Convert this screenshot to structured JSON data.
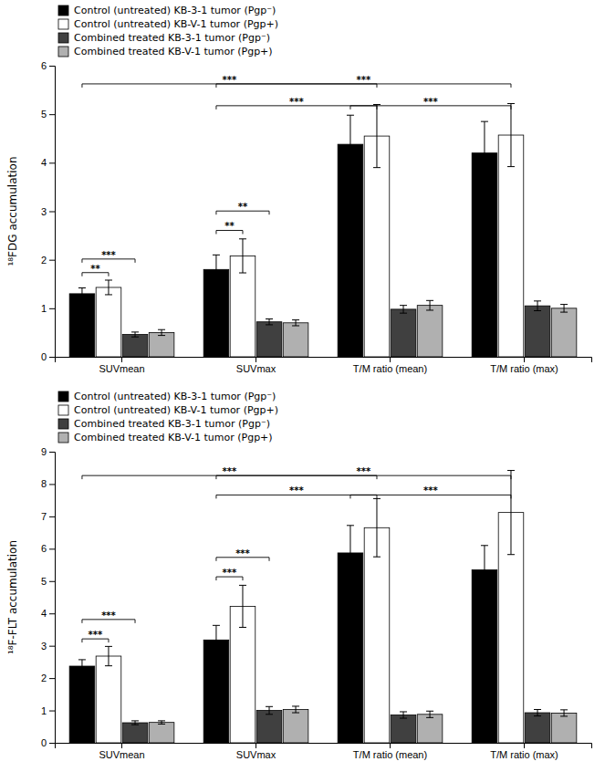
{
  "chart_data": [
    {
      "type": "bar",
      "ylabel": "¹⁸FDG accumulation",
      "categories": [
        "SUVmean",
        "SUVmax",
        "T/M ratio (mean)",
        "T/M ratio (max)"
      ],
      "series": [
        {
          "name": "Control (untreated) KB-3-1 tumor (Pgp⁻)",
          "color": "#000000",
          "values": [
            1.3,
            1.8,
            4.38,
            4.2
          ],
          "errors": [
            0.12,
            0.3,
            0.6,
            0.65
          ]
        },
        {
          "name": "Control (untreated) KB-V-1 tumor (Pgp+)",
          "color": "#ffffff",
          "values": [
            1.43,
            2.08,
            4.55,
            4.57
          ],
          "errors": [
            0.15,
            0.35,
            0.65,
            0.65
          ]
        },
        {
          "name": "Combined treated KB-3-1 tumor (Pgp⁻)",
          "color": "#404040",
          "values": [
            0.46,
            0.72,
            0.98,
            1.05
          ],
          "errors": [
            0.05,
            0.06,
            0.08,
            0.1
          ]
        },
        {
          "name": "Combined treated KB-V-1 tumor (Pgp+)",
          "color": "#b0b0b0",
          "values": [
            0.5,
            0.7,
            1.06,
            1.0
          ],
          "errors": [
            0.06,
            0.06,
            0.1,
            0.08
          ]
        }
      ],
      "ylim": [
        0,
        6
      ],
      "yticks": [
        0,
        1,
        2,
        3,
        4,
        5,
        6
      ],
      "grid": false,
      "legend": "upper left",
      "annotations": [
        {
          "text": "**",
          "y": 1.66,
          "start": [
            0,
            0
          ],
          "end": [
            0,
            1
          ]
        },
        {
          "text": "***",
          "y": 1.94,
          "start": [
            0,
            0
          ],
          "end": [
            0,
            2
          ]
        },
        {
          "text": "**",
          "y": 2.53,
          "start": [
            1,
            0
          ],
          "end": [
            1,
            1
          ]
        },
        {
          "text": "**",
          "y": 2.93,
          "start": [
            1,
            0
          ],
          "end": [
            1,
            2
          ]
        },
        {
          "text": "***",
          "y": 5.1,
          "start": [
            1,
            0
          ],
          "end": [
            2,
            1
          ]
        },
        {
          "text": "***",
          "y": 5.55,
          "start": [
            0,
            0
          ],
          "end": [
            2,
            1
          ]
        },
        {
          "text": "***",
          "y": 5.1,
          "start": [
            2,
            0
          ],
          "end": [
            3,
            1
          ]
        },
        {
          "text": "***",
          "y": 5.55,
          "start": [
            1,
            0
          ],
          "end": [
            3,
            1
          ]
        }
      ]
    },
    {
      "type": "bar",
      "ylabel": "¹⁸F-FLT accumulation",
      "categories": [
        "SUVmean",
        "SUVmax",
        "T/M ratio (mean)",
        "T/M ratio (max)"
      ],
      "series": [
        {
          "name": "Control (untreated) KB-3-1 tumor (Pgp⁻)",
          "color": "#000000",
          "values": [
            2.37,
            3.18,
            5.87,
            5.35
          ],
          "errors": [
            0.2,
            0.45,
            0.85,
            0.75
          ]
        },
        {
          "name": "Control (untreated) KB-V-1 tumor (Pgp+)",
          "color": "#ffffff",
          "values": [
            2.68,
            4.22,
            6.65,
            7.12
          ],
          "errors": [
            0.3,
            0.65,
            0.9,
            1.3
          ]
        },
        {
          "name": "Combined treated KB-3-1 tumor (Pgp⁻)",
          "color": "#404040",
          "values": [
            0.62,
            1.0,
            0.86,
            0.93
          ],
          "errors": [
            0.06,
            0.12,
            0.1,
            0.1
          ]
        },
        {
          "name": "Combined treated KB-V-1 tumor (Pgp+)",
          "color": "#b0b0b0",
          "values": [
            0.63,
            1.03,
            0.88,
            0.92
          ],
          "errors": [
            0.05,
            0.1,
            0.1,
            0.1
          ]
        }
      ],
      "ylim": [
        0,
        9
      ],
      "yticks": [
        0,
        1,
        2,
        3,
        4,
        5,
        6,
        7,
        8,
        9
      ],
      "grid": false,
      "legend": "upper left",
      "annotations": [
        {
          "text": "***",
          "y": 3.1,
          "start": [
            0,
            0
          ],
          "end": [
            0,
            1
          ]
        },
        {
          "text": "***",
          "y": 3.7,
          "start": [
            0,
            0
          ],
          "end": [
            0,
            2
          ]
        },
        {
          "text": "***",
          "y": 5.02,
          "start": [
            1,
            0
          ],
          "end": [
            1,
            1
          ]
        },
        {
          "text": "***",
          "y": 5.62,
          "start": [
            1,
            0
          ],
          "end": [
            1,
            2
          ]
        },
        {
          "text": "***",
          "y": 7.55,
          "start": [
            1,
            0
          ],
          "end": [
            2,
            1
          ]
        },
        {
          "text": "***",
          "y": 8.15,
          "start": [
            0,
            0
          ],
          "end": [
            2,
            1
          ]
        },
        {
          "text": "***",
          "y": 7.55,
          "start": [
            2,
            0
          ],
          "end": [
            3,
            1
          ]
        },
        {
          "text": "***",
          "y": 8.15,
          "start": [
            1,
            0
          ],
          "end": [
            3,
            1
          ]
        }
      ]
    }
  ]
}
